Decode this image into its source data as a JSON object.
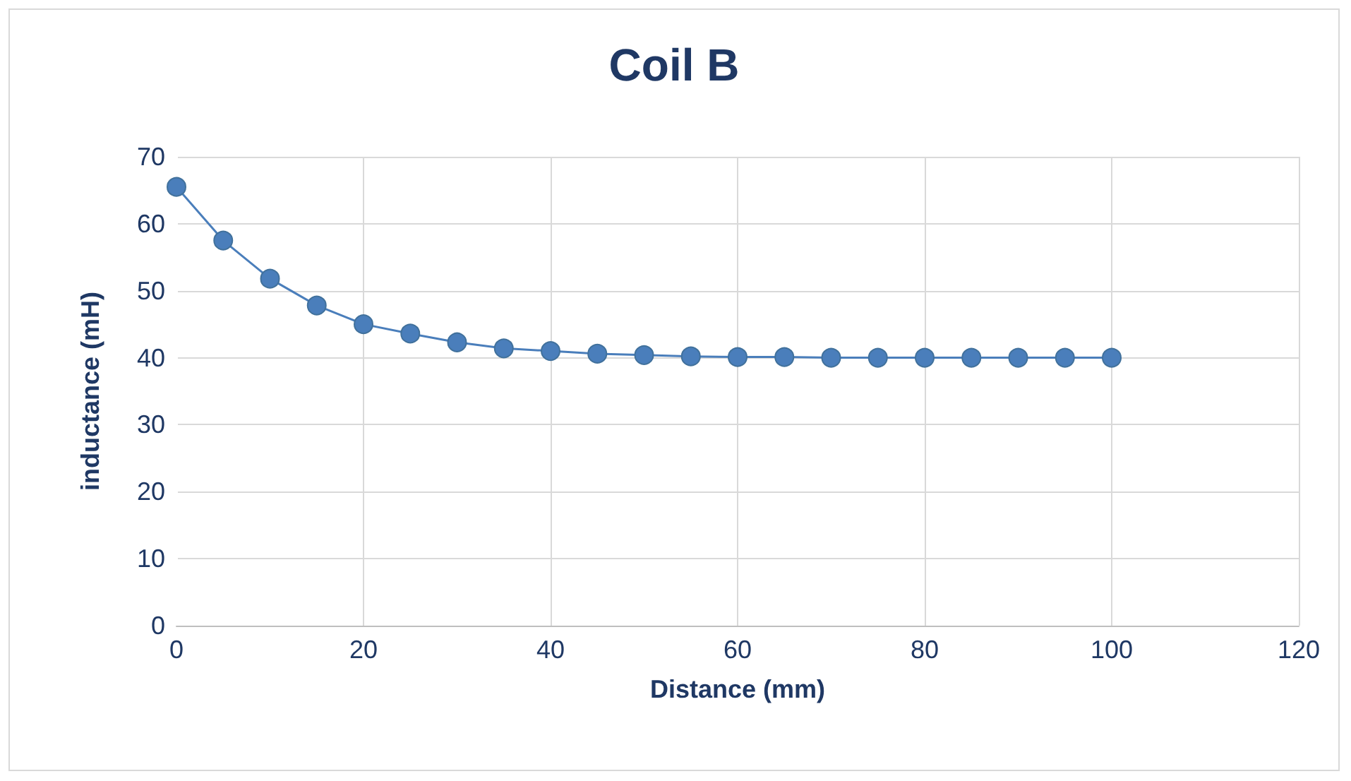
{
  "chart_data": {
    "type": "line",
    "title": "Coil B",
    "xlabel": "Distance (mm)",
    "ylabel": "inductance (mH)",
    "x": [
      0,
      5,
      10,
      15,
      20,
      25,
      30,
      35,
      40,
      45,
      50,
      55,
      60,
      65,
      70,
      75,
      80,
      85,
      90,
      95,
      100
    ],
    "series": [
      {
        "color": "#4a7ebb",
        "values": [
          65.5,
          57.5,
          51.8,
          47.8,
          45.0,
          43.6,
          42.3,
          41.4,
          41.0,
          40.6,
          40.4,
          40.2,
          40.1,
          40.1,
          40.0,
          40.0,
          40.0,
          40.0,
          40.0,
          40.0,
          40.0
        ]
      }
    ],
    "xlim": [
      0,
      120
    ],
    "xticks": [
      0,
      20,
      40,
      60,
      80,
      100,
      120
    ],
    "ylim": [
      0,
      70
    ],
    "yticks": [
      0,
      10,
      20,
      30,
      40,
      50,
      60,
      70
    ],
    "grid": true,
    "marker": "circle",
    "line_style": "solid"
  }
}
